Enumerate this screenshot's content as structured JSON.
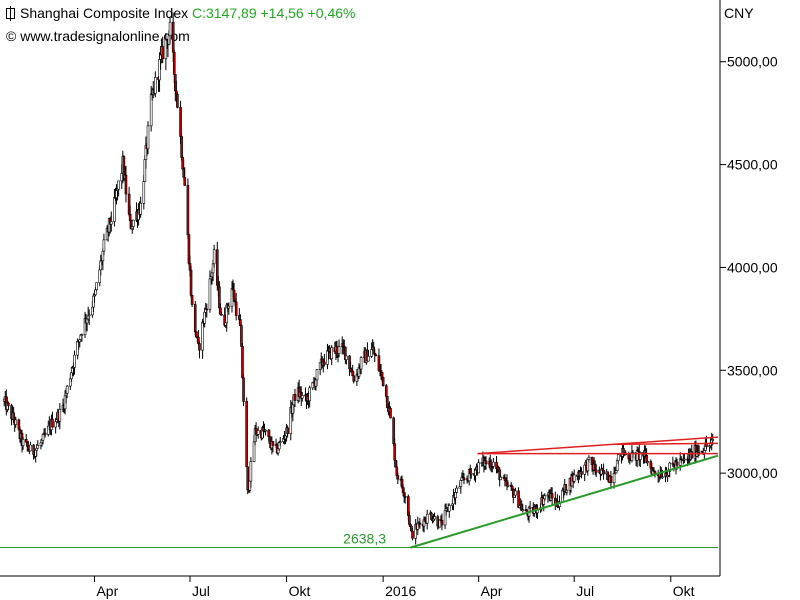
{
  "header": {
    "title": "Shanghai Composite Index",
    "quote": "C:3147,89 +14,56 +0,46%",
    "source": "© www.tradesignalonline.com",
    "currency": "CNY"
  },
  "colors": {
    "up": "#ffffff",
    "down": "#b40000",
    "wick": "#000000",
    "support": "#2a9a2a",
    "resistance": "#e02020"
  },
  "chart_data": {
    "type": "candlestick",
    "title": "",
    "ylim": [
      2500,
      5300
    ],
    "y_ticks": [
      {
        "value": 3000,
        "label": "3000,00"
      },
      {
        "value": 3500,
        "label": "3500,00"
      },
      {
        "value": 4000,
        "label": "4000,00"
      },
      {
        "value": 4500,
        "label": "4500,00"
      },
      {
        "value": 5000,
        "label": "5000,00"
      }
    ],
    "x_range": [
      "2015-01-01",
      "2016-11-15"
    ],
    "x_ticks": [
      {
        "date": "2015-04-01",
        "label": "Apr"
      },
      {
        "date": "2015-07-01",
        "label": "Jul"
      },
      {
        "date": "2015-10-01",
        "label": "Okt"
      },
      {
        "date": "2016-01-01",
        "label": "2016"
      },
      {
        "date": "2016-04-01",
        "label": "Apr"
      },
      {
        "date": "2016-07-01",
        "label": "Jul"
      },
      {
        "date": "2016-10-01",
        "label": "Okt"
      }
    ],
    "close_path": [
      [
        "2015-01-05",
        3350
      ],
      [
        "2015-01-15",
        3250
      ],
      [
        "2015-01-22",
        3150
      ],
      [
        "2015-02-01",
        3100
      ],
      [
        "2015-02-10",
        3150
      ],
      [
        "2015-02-20",
        3250
      ],
      [
        "2015-03-01",
        3300
      ],
      [
        "2015-03-10",
        3500
      ],
      [
        "2015-03-20",
        3700
      ],
      [
        "2015-04-01",
        3850
      ],
      [
        "2015-04-10",
        4100
      ],
      [
        "2015-04-20",
        4300
      ],
      [
        "2015-04-28",
        4500
      ],
      [
        "2015-05-05",
        4200
      ],
      [
        "2015-05-15",
        4300
      ],
      [
        "2015-05-25",
        4800
      ],
      [
        "2015-06-05",
        5050
      ],
      [
        "2015-06-12",
        5150
      ],
      [
        "2015-06-19",
        4800
      ],
      [
        "2015-06-26",
        4400
      ],
      [
        "2015-07-03",
        3800
      ],
      [
        "2015-07-09",
        3600
      ],
      [
        "2015-07-16",
        3800
      ],
      [
        "2015-07-24",
        4050
      ],
      [
        "2015-08-01",
        3700
      ],
      [
        "2015-08-10",
        3900
      ],
      [
        "2015-08-18",
        3700
      ],
      [
        "2015-08-25",
        2900
      ],
      [
        "2015-09-01",
        3200
      ],
      [
        "2015-09-10",
        3200
      ],
      [
        "2015-09-20",
        3100
      ],
      [
        "2015-10-01",
        3200
      ],
      [
        "2015-10-10",
        3400
      ],
      [
        "2015-10-20",
        3350
      ],
      [
        "2015-10-28",
        3450
      ],
      [
        "2015-11-05",
        3550
      ],
      [
        "2015-11-15",
        3600
      ],
      [
        "2015-11-25",
        3600
      ],
      [
        "2015-12-05",
        3450
      ],
      [
        "2015-12-12",
        3550
      ],
      [
        "2015-12-22",
        3600
      ],
      [
        "2016-01-01",
        3450
      ],
      [
        "2016-01-07",
        3300
      ],
      [
        "2016-01-14",
        3000
      ],
      [
        "2016-01-22",
        2900
      ],
      [
        "2016-01-28",
        2700
      ],
      [
        "2016-02-04",
        2750
      ],
      [
        "2016-02-15",
        2800
      ],
      [
        "2016-02-25",
        2750
      ],
      [
        "2016-03-05",
        2850
      ],
      [
        "2016-03-15",
        2950
      ],
      [
        "2016-03-25",
        3000
      ],
      [
        "2016-04-05",
        3050
      ],
      [
        "2016-04-15",
        3050
      ],
      [
        "2016-04-25",
        2950
      ],
      [
        "2016-05-05",
        2900
      ],
      [
        "2016-05-15",
        2800
      ],
      [
        "2016-05-25",
        2820
      ],
      [
        "2016-06-05",
        2900
      ],
      [
        "2016-06-15",
        2850
      ],
      [
        "2016-06-25",
        2950
      ],
      [
        "2016-07-05",
        3000
      ],
      [
        "2016-07-15",
        3050
      ],
      [
        "2016-07-25",
        3000
      ],
      [
        "2016-08-05",
        2980
      ],
      [
        "2016-08-15",
        3100
      ],
      [
        "2016-08-25",
        3080
      ],
      [
        "2016-09-05",
        3090
      ],
      [
        "2016-09-15",
        3000
      ],
      [
        "2016-09-25",
        3000
      ],
      [
        "2016-10-05",
        3040
      ],
      [
        "2016-10-15",
        3060
      ],
      [
        "2016-10-25",
        3110
      ],
      [
        "2016-11-05",
        3130
      ],
      [
        "2016-11-11",
        3148
      ]
    ],
    "horizontal_line": {
      "value": 2638.3,
      "label": "2638,3"
    },
    "support_trendline": [
      [
        "2016-01-27",
        2638
      ],
      [
        "2016-11-15",
        3085
      ]
    ],
    "resistance_lines": [
      {
        "from": [
          "2016-03-31",
          3095
        ],
        "to": [
          "2016-11-15",
          3175
        ]
      },
      {
        "from": [
          "2016-03-31",
          3095
        ],
        "to": [
          "2016-11-15",
          3095
        ]
      },
      {
        "from": [
          "2016-08-10",
          3140
        ],
        "to": [
          "2016-11-15",
          3145
        ]
      }
    ]
  }
}
